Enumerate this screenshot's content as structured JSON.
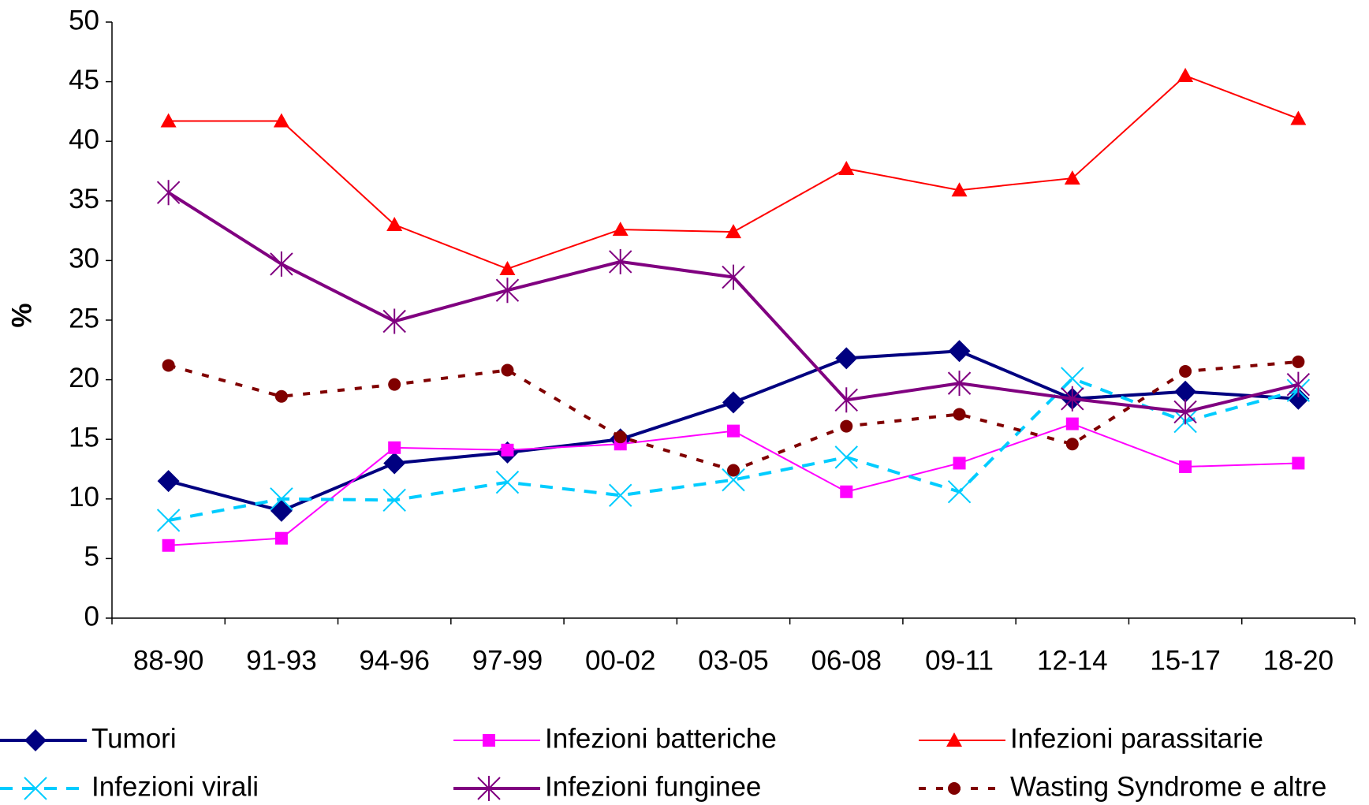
{
  "chart_data": {
    "type": "line",
    "y_label": "%",
    "categories": [
      "88-90",
      "91-93",
      "94-96",
      "97-99",
      "00-02",
      "03-05",
      "06-08",
      "09-11",
      "12-14",
      "15-17",
      "18-20"
    ],
    "ylim": [
      0,
      50
    ],
    "yticks": [
      0,
      5,
      10,
      15,
      20,
      25,
      30,
      35,
      40,
      45,
      50
    ],
    "series": [
      {
        "name": "Tumori",
        "color": "#000080",
        "marker": "diamond",
        "dash": "solid",
        "width": 4,
        "values": [
          11.5,
          9.0,
          13.0,
          13.9,
          15.0,
          18.1,
          21.8,
          22.4,
          18.4,
          19.0,
          18.4
        ]
      },
      {
        "name": "Infezioni batteriche",
        "color": "#ff00ff",
        "marker": "square",
        "dash": "solid",
        "width": 2,
        "values": [
          6.1,
          6.7,
          14.3,
          14.1,
          14.6,
          15.7,
          10.6,
          13.0,
          16.3,
          12.7,
          13.0
        ]
      },
      {
        "name": "Infezioni parassitarie",
        "color": "#ff0000",
        "marker": "triangle",
        "dash": "solid",
        "width": 2,
        "values": [
          41.7,
          41.7,
          33.0,
          29.3,
          32.6,
          32.4,
          37.7,
          35.9,
          36.9,
          45.5,
          41.9
        ]
      },
      {
        "name": "Infezioni virali",
        "color": "#00ccff",
        "marker": "x",
        "dash": "dashed",
        "width": 4,
        "values": [
          8.2,
          10.0,
          9.9,
          11.4,
          10.3,
          11.6,
          13.5,
          10.6,
          20.1,
          16.5,
          19.1
        ]
      },
      {
        "name": "Infezioni funginee",
        "color": "#800080",
        "marker": "star",
        "dash": "solid",
        "width": 4,
        "values": [
          35.7,
          29.7,
          24.9,
          27.5,
          29.9,
          28.6,
          18.3,
          19.7,
          18.4,
          17.3,
          19.6
        ]
      },
      {
        "name": "Wasting Syndrome e altre",
        "color": "#800000",
        "marker": "circle",
        "dash": "dotted",
        "width": 4,
        "values": [
          21.2,
          18.6,
          19.6,
          20.8,
          15.2,
          12.4,
          16.1,
          17.1,
          14.6,
          20.7,
          21.5
        ]
      }
    ]
  }
}
